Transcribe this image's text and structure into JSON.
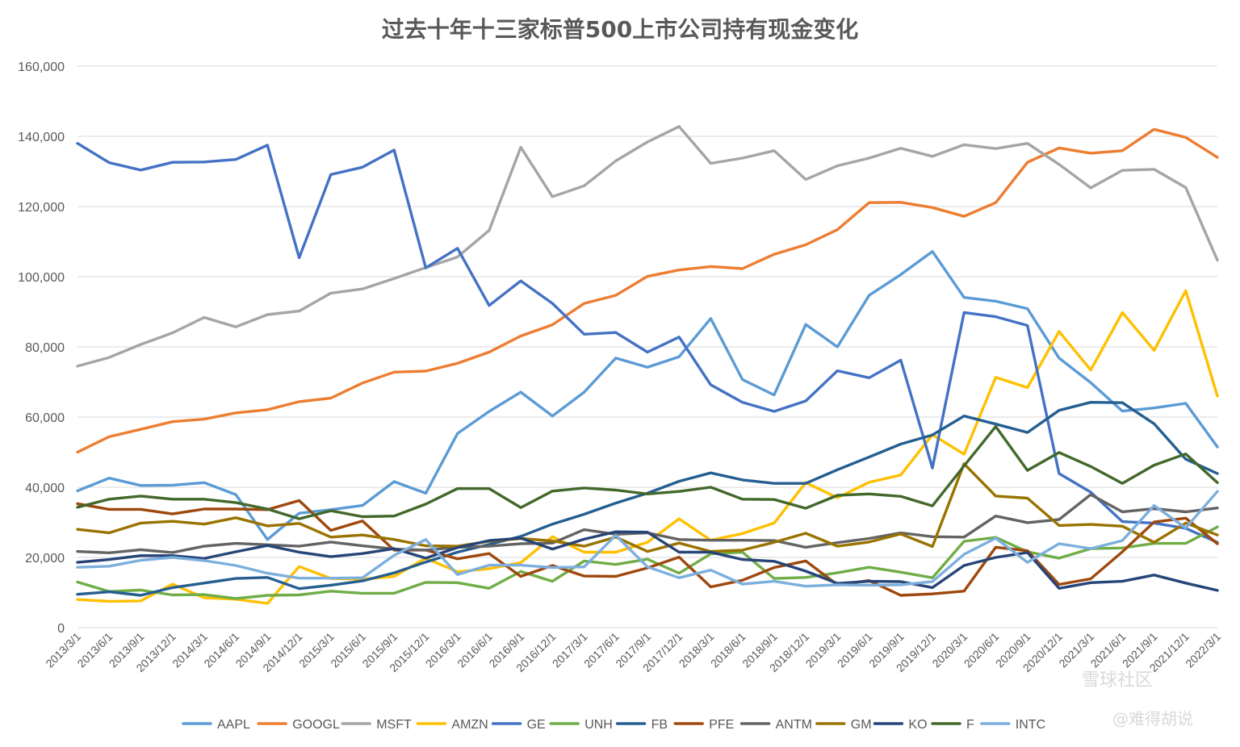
{
  "watermark": {
    "big_text": "雪球社区",
    "credit_text": "@难得胡说"
  },
  "chart_data": {
    "type": "line",
    "title": "过去十年十三家标普500上市公司持有现金变化",
    "xlabel": "",
    "ylabel": "",
    "ylim": [
      0,
      160000
    ],
    "y_ticks": [
      0,
      20000,
      40000,
      60000,
      80000,
      100000,
      120000,
      140000,
      160000
    ],
    "y_tick_labels": [
      "0",
      "20,000",
      "40,000",
      "60,000",
      "80,000",
      "100,000",
      "120,000",
      "140,000",
      "160,000"
    ],
    "grid": true,
    "legend_position": "bottom",
    "x": [
      "2013/3/1",
      "2013/6/1",
      "2013/9/1",
      "2013/12/1",
      "2014/3/1",
      "2014/6/1",
      "2014/9/1",
      "2014/12/1",
      "2015/3/1",
      "2015/6/1",
      "2015/9/1",
      "2015/12/1",
      "2016/3/1",
      "2016/6/1",
      "2016/9/1",
      "2016/12/1",
      "2017/3/1",
      "2017/6/1",
      "2017/9/1",
      "2017/12/1",
      "2018/3/1",
      "2018/6/1",
      "2018/9/1",
      "2018/12/1",
      "2019/3/1",
      "2019/6/1",
      "2019/9/1",
      "2019/12/1",
      "2020/3/1",
      "2020/6/1",
      "2020/9/1",
      "2020/12/1",
      "2021/3/1",
      "2021/6/1",
      "2021/9/1",
      "2021/12/1",
      "2022/3/1"
    ],
    "series": [
      {
        "name": "AAPL",
        "color": "#5b9bd5",
        "values": [
          39000,
          42600,
          40500,
          40600,
          41300,
          37900,
          25100,
          32600,
          33600,
          34800,
          41600,
          38300,
          55300,
          61600,
          67100,
          60300,
          67100,
          76800,
          74200,
          77200,
          88100,
          70700,
          66300,
          86400,
          80000,
          94700,
          100600,
          107200,
          94100,
          93000,
          90900,
          76800,
          69800,
          61700,
          62600,
          63900,
          51500
        ]
      },
      {
        "name": "GOOGL",
        "color": "#ed7d31",
        "values": [
          50000,
          54400,
          56500,
          58700,
          59400,
          61200,
          62100,
          64400,
          65400,
          69700,
          72800,
          73100,
          75300,
          78500,
          83100,
          86300,
          92400,
          94700,
          100100,
          101900,
          102900,
          102300,
          106400,
          109100,
          113400,
          121100,
          121200,
          119700,
          117200,
          121100,
          132600,
          136700,
          135200,
          135900,
          142000,
          139700,
          134000
        ]
      },
      {
        "name": "MSFT",
        "color": "#a5a5a5",
        "values": [
          74500,
          77000,
          80700,
          84000,
          88400,
          85700,
          89200,
          90200,
          95300,
          96500,
          99500,
          102600,
          105600,
          113200,
          136900,
          122800,
          125900,
          133000,
          138400,
          142800,
          132300,
          133800,
          135900,
          127700,
          131600,
          133800,
          136600,
          134300,
          137600,
          136500,
          138000,
          132000,
          125300,
          130300,
          130600,
          125400,
          104700
        ]
      },
      {
        "name": "AMZN",
        "color": "#ffc000",
        "values": [
          8000,
          7500,
          7600,
          12400,
          8500,
          8100,
          6900,
          17400,
          14000,
          13800,
          14600,
          19800,
          15900,
          16800,
          18500,
          25900,
          21500,
          21500,
          24300,
          31000,
          24900,
          26800,
          29800,
          41300,
          37000,
          41400,
          43500,
          55000,
          49400,
          71300,
          68400,
          84400,
          73400,
          89800,
          79000,
          96000,
          66000
        ]
      },
      {
        "name": "GE",
        "color": "#4472c4",
        "values": [
          138000,
          132500,
          130400,
          132600,
          132700,
          133400,
          137500,
          105400,
          129100,
          131200,
          136100,
          102500,
          108100,
          91800,
          98800,
          92400,
          83600,
          84100,
          78500,
          82800,
          69200,
          64200,
          61600,
          64600,
          73200,
          71200,
          76200,
          45500,
          89800,
          88600,
          86100,
          43900,
          38600,
          30200,
          29800,
          28300,
          24300
        ]
      },
      {
        "name": "UNH",
        "color": "#70ad47",
        "values": [
          13000,
          10300,
          10700,
          9300,
          9400,
          8300,
          9200,
          9300,
          10400,
          9800,
          9800,
          12900,
          12800,
          11200,
          16000,
          13200,
          19000,
          18000,
          19500,
          15500,
          21000,
          21500,
          14000,
          14300,
          15600,
          17200,
          15800,
          14200,
          24600,
          25700,
          21600,
          19800,
          22500,
          22700,
          24000,
          24000,
          28700
        ]
      },
      {
        "name": "FB",
        "color": "#255e91",
        "values": [
          9500,
          10200,
          9200,
          11400,
          12700,
          14000,
          14300,
          11100,
          12100,
          13300,
          15600,
          18700,
          21500,
          23700,
          26000,
          29500,
          32300,
          35500,
          38300,
          41700,
          44100,
          42100,
          41100,
          41100,
          45000,
          48600,
          52300,
          54900,
          60300,
          58000,
          55600,
          61900,
          64200,
          64100,
          58100,
          48000,
          43900
        ]
      },
      {
        "name": "PFE",
        "color": "#9e480e",
        "values": [
          35300,
          33700,
          33700,
          32400,
          33800,
          33800,
          33600,
          36200,
          27700,
          30400,
          22100,
          22100,
          19600,
          21100,
          14600,
          17700,
          14700,
          14600,
          17000,
          20100,
          11600,
          13500,
          17100,
          19000,
          12200,
          13400,
          9200,
          9600,
          10400,
          22900,
          21900,
          12300,
          13900,
          21600,
          30100,
          31200,
          23900
        ]
      },
      {
        "name": "ANTM",
        "color": "#636363",
        "values": [
          21700,
          21300,
          22200,
          21400,
          23200,
          24000,
          23600,
          23200,
          24400,
          23300,
          22400,
          22100,
          22900,
          23200,
          23900,
          24100,
          27900,
          26600,
          27000,
          25100,
          24900,
          24900,
          24800,
          22900,
          24200,
          25400,
          27000,
          25900,
          25800,
          31800,
          29900,
          30800,
          37900,
          33000,
          33900,
          33000,
          34100
        ]
      },
      {
        "name": "GM",
        "color": "#997300",
        "values": [
          28000,
          27000,
          29800,
          30300,
          29500,
          31300,
          29000,
          29700,
          25800,
          26400,
          25100,
          23300,
          23200,
          24600,
          25400,
          24700,
          23200,
          25800,
          21700,
          24100,
          21700,
          22100,
          24300,
          26900,
          23200,
          24400,
          26700,
          23100,
          46700,
          37500,
          36900,
          29100,
          29400,
          28900,
          24300,
          29800,
          26400
        ]
      },
      {
        "name": "KO",
        "color": "#264478",
        "values": [
          18600,
          19400,
          20500,
          20500,
          19700,
          21600,
          23400,
          21500,
          20200,
          21100,
          22500,
          19800,
          22800,
          24800,
          25500,
          22400,
          25200,
          27300,
          27200,
          21500,
          21500,
          19400,
          18900,
          16100,
          12600,
          13200,
          13100,
          11400,
          17700,
          20000,
          21400,
          11200,
          12800,
          13200,
          15000,
          12700,
          10600
        ]
      },
      {
        "name": "F",
        "color": "#43682b",
        "values": [
          34300,
          36600,
          37500,
          36600,
          36600,
          35600,
          33800,
          31000,
          33300,
          31600,
          31800,
          35200,
          39600,
          39600,
          34200,
          38900,
          39800,
          39200,
          38100,
          38800,
          40000,
          36600,
          36500,
          34000,
          37700,
          38100,
          37400,
          34700,
          46100,
          57300,
          44800,
          49900,
          45900,
          41100,
          46300,
          49500,
          41300
        ]
      },
      {
        "name": "INTC",
        "color": "#7cafdd",
        "values": [
          17200,
          17500,
          19200,
          20000,
          19100,
          17700,
          15500,
          14100,
          14100,
          14200,
          20600,
          25100,
          15100,
          17800,
          17800,
          17100,
          17300,
          26300,
          17300,
          14200,
          16400,
          12400,
          13200,
          11800,
          12200,
          12100,
          12200,
          13100,
          20900,
          25500,
          18600,
          23900,
          22500,
          24800,
          34800,
          28400,
          38800
        ]
      }
    ]
  }
}
